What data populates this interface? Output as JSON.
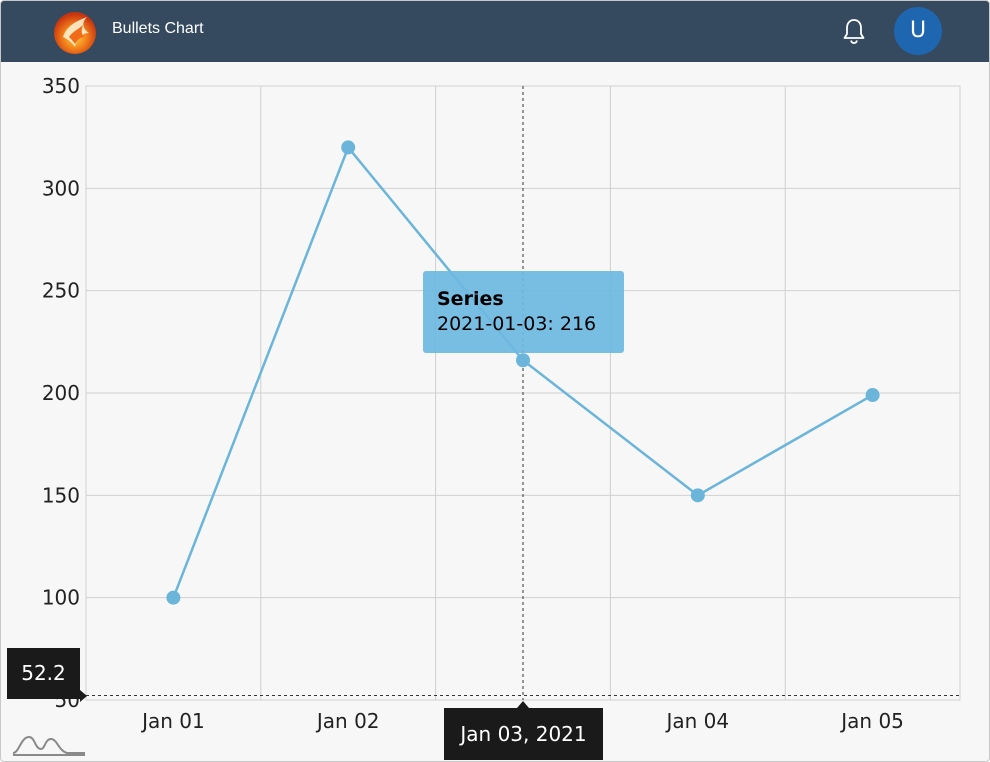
{
  "header": {
    "title": "Bullets Chart",
    "avatar_initial": "U",
    "logo_icon": "phoenix-logo-icon",
    "bell_icon": "bell-icon"
  },
  "colors": {
    "header_bg": "#354a5f",
    "series": "#6bb5da",
    "avatar_bg": "#1f66b0",
    "tooltip_bg": "#6db9df"
  },
  "tooltip": {
    "title": "Series",
    "body": "2021-01-03: 216"
  },
  "crosshair": {
    "x_label": "Jan 03, 2021",
    "y_label": "52.2",
    "x_value": "2021-01-03",
    "y_value": 52.2
  },
  "chart_data": {
    "type": "line",
    "title": "",
    "xlabel": "",
    "ylabel": "",
    "categories": [
      "Jan 01",
      "Jan 02",
      "Jan 03",
      "Jan 04",
      "Jan 05"
    ],
    "x": [
      "2021-01-01",
      "2021-01-02",
      "2021-01-03",
      "2021-01-04",
      "2021-01-05"
    ],
    "series": [
      {
        "name": "Series",
        "values": [
          100,
          320,
          216,
          150,
          199
        ]
      }
    ],
    "ylim": [
      50,
      350
    ],
    "yticks": [
      "50",
      "100",
      "150",
      "200",
      "250",
      "300",
      "350"
    ],
    "grid": true,
    "markers": true
  }
}
